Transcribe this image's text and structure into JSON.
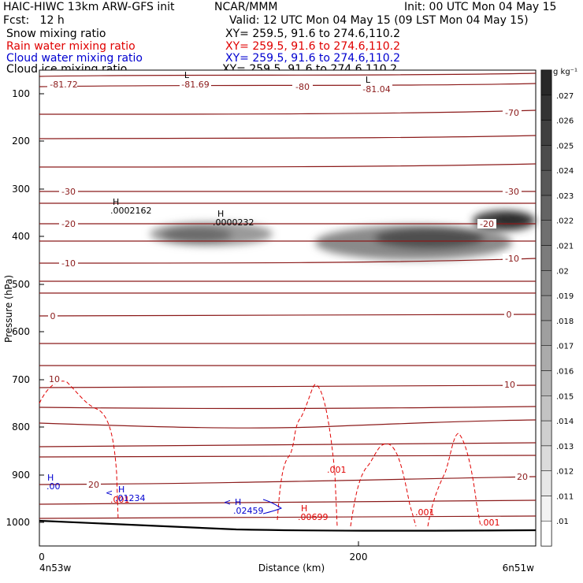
{
  "header": {
    "model": "HAIC-HIWC 13km ARW-GFS init",
    "org": "NCAR/MMM",
    "init": "Init: 00 UTC Mon 04 May 15",
    "fcst": "Fcst:   12 h",
    "valid": "Valid: 12 UTC Mon 04 May 15 (09 LST Mon 04 May 15)",
    "fields": [
      {
        "name": "Snow mixing ratio",
        "xy": "XY= 259.5, 91.6 to 274.6,110.2",
        "color": "#000000"
      },
      {
        "name": "Rain water mixing ratio",
        "xy": "XY= 259.5, 91.6 to 274.6,110.2",
        "color": "#e00000"
      },
      {
        "name": "Cloud water mixing ratio",
        "xy": "XY= 259.5, 91.6 to 274.6,110.2",
        "color": "#0000d0"
      },
      {
        "name": "Cloud ice mixing ratio",
        "xy": "XY= 259.5, 91.6 to 274.6,110.2",
        "color": "#000000"
      }
    ]
  },
  "chart_data": {
    "type": "contour",
    "ylabel": "Pressure (hPa)",
    "xlabel": "Distance (km)",
    "y_ticks": [
      100,
      200,
      300,
      400,
      500,
      600,
      700,
      800,
      900,
      1000
    ],
    "x_ticks": [
      0,
      200
    ],
    "x_range": [
      0,
      310
    ],
    "x_end_labels": [
      "4n53w",
      "6n51w"
    ],
    "temperature_labels": [
      "-81.72",
      "-81.69",
      "-80",
      "-81.04",
      "-70",
      "-30",
      "-30",
      "-20",
      "-20",
      "-10",
      "-10",
      "0",
      "0",
      "10",
      "10",
      "20",
      "20"
    ],
    "temperature_extrema": [
      "L",
      "L"
    ],
    "snow_extrema": [
      {
        "mark": "H",
        "value": ".0002162"
      },
      {
        "mark": "H",
        "value": ".0000232"
      }
    ],
    "rain_labels": [
      ".001",
      ".001",
      ".001",
      ".001"
    ],
    "rain_extrema": [
      {
        "mark": "H",
        "value": ".00699"
      }
    ],
    "cloud_water_extrema": [
      {
        "mark": "H",
        "value": ".00"
      },
      {
        "mark": "H",
        "value": ".01234"
      },
      {
        "mark": "H",
        "value": ".02459"
      }
    ],
    "colorbar": {
      "units": "g kg⁻¹",
      "levels": [
        ".01",
        ".011",
        ".012",
        ".013",
        ".014",
        ".015",
        ".016",
        ".017",
        ".018",
        ".019",
        ".02",
        ".021",
        ".022",
        ".023",
        ".024",
        ".025",
        ".026",
        ".027"
      ]
    },
    "colors": {
      "isotherm": "#8b1a1a",
      "rain": "#e00000",
      "cloud_water": "#0000d0",
      "terrain": "#000000"
    }
  }
}
